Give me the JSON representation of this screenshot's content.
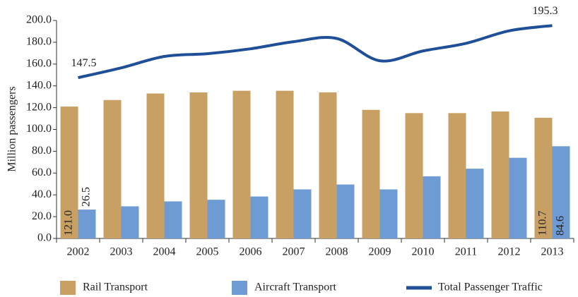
{
  "chart_data": {
    "type": "bar_line",
    "y_label": "Million passengers",
    "categories": [
      "2002",
      "2003",
      "2004",
      "2005",
      "2006",
      "2007",
      "2008",
      "2009",
      "2010",
      "2011",
      "2012",
      "2013"
    ],
    "series": [
      {
        "name": "Rail Transport",
        "type": "bar",
        "color": "#c9a063",
        "values": [
          121.0,
          127,
          133,
          134,
          135.5,
          135.5,
          134,
          118,
          115,
          115,
          116.5,
          110.7
        ],
        "value_labels": [
          "121.0",
          null,
          null,
          null,
          null,
          null,
          null,
          null,
          null,
          null,
          null,
          "110.7"
        ]
      },
      {
        "name": "Aircraft Transport",
        "type": "bar",
        "color": "#6f9bd4",
        "values": [
          26.5,
          29.5,
          34,
          35.5,
          38.5,
          45,
          49.5,
          45,
          57,
          64,
          74,
          84.6
        ],
        "value_labels": [
          "26.5",
          null,
          null,
          null,
          null,
          null,
          null,
          null,
          null,
          null,
          null,
          "84.6"
        ]
      },
      {
        "name": "Total Passenger Traffic",
        "type": "line",
        "color": "#1f4f99",
        "values": [
          147.5,
          156.5,
          167,
          169.5,
          174,
          180.5,
          183.5,
          163,
          172,
          179,
          190.5,
          195.3
        ],
        "value_labels": [
          "147.5",
          null,
          null,
          null,
          null,
          null,
          null,
          null,
          null,
          null,
          null,
          "195.3"
        ]
      }
    ],
    "ylim": [
      0,
      200
    ],
    "yticks": [
      {
        "value": 0,
        "label": "0.0"
      },
      {
        "value": 20,
        "label": "20.0"
      },
      {
        "value": 40,
        "label": "40.0"
      },
      {
        "value": 60,
        "label": "60.0"
      },
      {
        "value": 80,
        "label": "80.0"
      },
      {
        "value": 100,
        "label": "100.0"
      },
      {
        "value": 120,
        "label": "120.0"
      },
      {
        "value": 140,
        "label": "140.0"
      },
      {
        "value": 160,
        "label": "160.0"
      },
      {
        "value": 180,
        "label": "180.0"
      },
      {
        "value": 200,
        "label": "200.0"
      }
    ],
    "grid": false,
    "legend": "bottom"
  }
}
